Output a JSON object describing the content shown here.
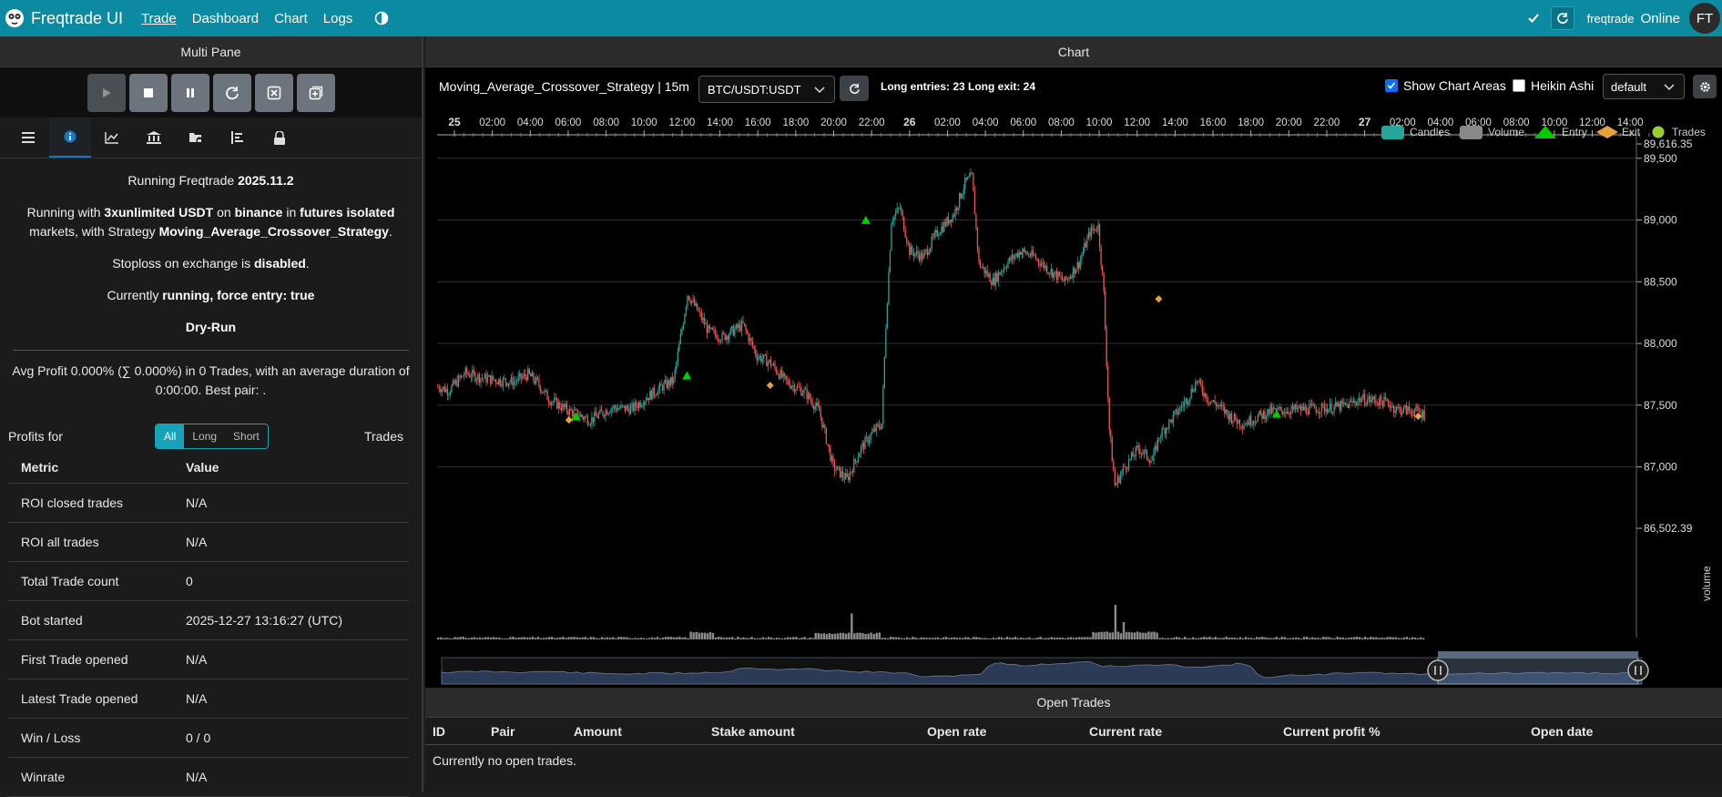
{
  "nav": {
    "brand": "Freqtrade UI",
    "links": [
      "Trade",
      "Dashboard",
      "Chart",
      "Logs"
    ],
    "user": "freqtrade",
    "status": "Online",
    "avatar": "FT"
  },
  "left": {
    "title": "Multi Pane",
    "controls": [
      "play-icon",
      "stop-icon",
      "pause-icon",
      "reload-icon",
      "force-exit-icon",
      "force-entry-icon"
    ],
    "tabs": [
      "list-icon",
      "info-icon",
      "chart-line-icon",
      "bank-icon",
      "folder-lock-icon",
      "align-icon",
      "lock-icon"
    ],
    "info": {
      "running_prefix": "Running Freqtrade",
      "version": "2025.11.2",
      "p2_a": "Running with",
      "stake": "3xunlimited USDT",
      "p2_b": "on",
      "exchange": "binance",
      "p2_c": "in",
      "mode": "futures isolated",
      "p2_d": "markets, with Strategy",
      "strategy": "Moving_Average_Crossover_Strategy",
      "p3_a": "Stoploss on exchange is",
      "sl_state": "disabled",
      "p4_a": "Currently",
      "state": "running, force entry: true",
      "dry": "Dry-Run"
    },
    "avg_profit": "Avg Profit 0.000% (∑ 0.000%) in 0 Trades, with an average duration of 0:00:00. Best pair: .",
    "profits_label": "Profits for",
    "profit_buttons": [
      "All",
      "Long",
      "Short"
    ],
    "trades_label": "Trades",
    "metric_header": "Metric",
    "value_header": "Value",
    "metrics": [
      {
        "name": "ROI closed trades",
        "value": "N/A"
      },
      {
        "name": "ROI all trades",
        "value": "N/A"
      },
      {
        "name": "Total Trade count",
        "value": "0"
      },
      {
        "name": "Bot started",
        "value": "2025-12-27 13:16:27 (UTC)"
      },
      {
        "name": "First Trade opened",
        "value": "N/A"
      },
      {
        "name": "Latest Trade opened",
        "value": "N/A"
      },
      {
        "name": "Win / Loss",
        "value": "0 / 0"
      },
      {
        "name": "Winrate",
        "value": "N/A"
      }
    ]
  },
  "chart": {
    "title": "Chart",
    "strategy_title": "Moving_Average_Crossover_Strategy | 15m",
    "pair": "BTC/USDT:USDT",
    "entries": "Long entries: 23  Long exit: 24",
    "show_areas": "Show Chart Areas",
    "heikin": "Heikin Ashi",
    "layout": "default",
    "legend": [
      "Candles",
      "Volume",
      "Entry",
      "Exit",
      "Trades"
    ],
    "colors": {
      "up": "#26a69a",
      "down": "#ef5350",
      "entry": "#00cc00",
      "exit": "#e6a23c",
      "trades": "#9acd32"
    },
    "x_labels": [
      "25",
      "02:00",
      "04:00",
      "06:00",
      "08:00",
      "10:00",
      "12:00",
      "14:00",
      "16:00",
      "18:00",
      "20:00",
      "22:00",
      "26",
      "02:00",
      "04:00",
      "06:00",
      "08:00",
      "10:00",
      "12:00",
      "14:00",
      "16:00",
      "18:00",
      "20:00",
      "22:00",
      "27",
      "02:00",
      "04:00",
      "06:00",
      "08:00",
      "10:00",
      "12:00",
      "14:00"
    ],
    "y_labels": [
      "89,616.35",
      "89,500",
      "89,000",
      "88,500",
      "88,000",
      "87,500",
      "87,000",
      "86,502.39"
    ],
    "volume_label": "volume"
  },
  "chart_data": {
    "type": "candlestick",
    "interval": "15m",
    "ylim": [
      86502.39,
      89616.35
    ],
    "close_path": [
      [
        0,
        87650
      ],
      [
        8,
        87620
      ],
      [
        20,
        87760
      ],
      [
        32,
        87720
      ],
      [
        45,
        87700
      ],
      [
        55,
        87690
      ],
      [
        65,
        87750
      ],
      [
        72,
        87680
      ],
      [
        80,
        87550
      ],
      [
        95,
        87450
      ],
      [
        110,
        87380
      ],
      [
        125,
        87480
      ],
      [
        140,
        87470
      ],
      [
        150,
        87560
      ],
      [
        162,
        87650
      ],
      [
        170,
        87700
      ],
      [
        180,
        88400
      ],
      [
        188,
        88250
      ],
      [
        195,
        88100
      ],
      [
        205,
        88050
      ],
      [
        220,
        88150
      ],
      [
        230,
        87900
      ],
      [
        240,
        87840
      ],
      [
        250,
        87700
      ],
      [
        265,
        87600
      ],
      [
        275,
        87450
      ],
      [
        285,
        87000
      ],
      [
        295,
        86900
      ],
      [
        305,
        87150
      ],
      [
        315,
        87300
      ],
      [
        320,
        87350
      ],
      [
        323,
        88150
      ],
      [
        327,
        89000
      ],
      [
        333,
        89100
      ],
      [
        340,
        88750
      ],
      [
        350,
        88700
      ],
      [
        360,
        88900
      ],
      [
        372,
        89050
      ],
      [
        380,
        89300
      ],
      [
        385,
        89350
      ],
      [
        390,
        88650
      ],
      [
        400,
        88500
      ],
      [
        410,
        88650
      ],
      [
        420,
        88750
      ],
      [
        430,
        88700
      ],
      [
        440,
        88600
      ],
      [
        452,
        88500
      ],
      [
        462,
        88650
      ],
      [
        470,
        88900
      ],
      [
        476,
        88950
      ],
      [
        480,
        88400
      ],
      [
        484,
        87300
      ],
      [
        488,
        86850
      ],
      [
        495,
        87000
      ],
      [
        505,
        87150
      ],
      [
        515,
        87050
      ],
      [
        520,
        87250
      ],
      [
        530,
        87400
      ],
      [
        540,
        87550
      ],
      [
        547,
        87700
      ],
      [
        555,
        87550
      ],
      [
        562,
        87500
      ],
      [
        572,
        87400
      ],
      [
        580,
        87350
      ],
      [
        590,
        87400
      ],
      [
        600,
        87450
      ],
      [
        615,
        87460
      ],
      [
        630,
        87470
      ],
      [
        645,
        87480
      ],
      [
        655,
        87500
      ],
      [
        665,
        87550
      ],
      [
        675,
        87540
      ],
      [
        685,
        87520
      ],
      [
        690,
        87470
      ],
      [
        705,
        87450
      ],
      [
        712,
        87420
      ]
    ],
    "markers": {
      "entry": [
        [
          100,
          87400
        ],
        [
          180,
          87730
        ],
        [
          309,
          88990
        ],
        [
          605,
          87420
        ]
      ],
      "exit": [
        [
          95,
          87380
        ],
        [
          240,
          87660
        ],
        [
          520,
          88360
        ],
        [
          707,
          87410
        ]
      ]
    },
    "volume_spikes": [
      [
        298,
        0.75
      ],
      [
        488,
        1
      ],
      [
        491,
        0.8
      ],
      [
        494,
        0.5
      ]
    ]
  },
  "trades": {
    "title": "Open Trades",
    "columns": [
      "ID",
      "Pair",
      "Amount",
      "Stake amount",
      "Open rate",
      "Current rate",
      "Current profit %",
      "Open date"
    ],
    "empty": "Currently no open trades."
  }
}
